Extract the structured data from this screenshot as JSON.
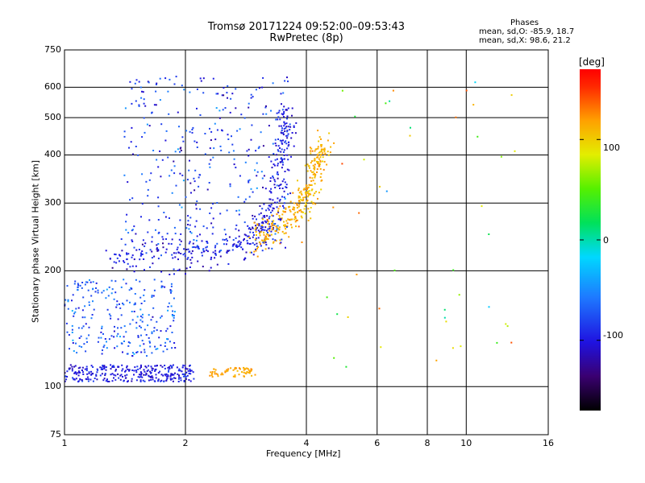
{
  "header": {
    "title_line1": "Tromsø 20171224 09:52:00–09:53:43",
    "title_line2": "RwPretec (8p)"
  },
  "phases_box": {
    "heading": "Phases",
    "line_o": "mean, sd,O: -85.9, 18.7",
    "line_x": "mean, sd,X:  98.6, 21.2"
  },
  "colorbar": {
    "unit": "[deg]",
    "ticks": [
      "100",
      "0",
      "-100"
    ]
  },
  "colors": {
    "colormap": [
      "#000000",
      "#3a0070",
      "#1f12e0",
      "#1e78ff",
      "#00d8ff",
      "#00e15a",
      "#55f000",
      "#e3ee00",
      "#ffa000",
      "#ff2800",
      "#ff0000"
    ]
  },
  "chart_data": {
    "type": "scatter",
    "title": "Tromsø 20171224 09:52:00–09:53:43",
    "subtitle": "RwPretec (8p)",
    "xlabel": "Frequency [MHz]",
    "ylabel": "Stationary phase Virtual Height [km]",
    "x_scale": "log",
    "y_scale": "log",
    "xlim": [
      1,
      16
    ],
    "ylim": [
      75,
      750
    ],
    "x_ticks": [
      "1",
      "2",
      "4",
      "6",
      "8",
      "10",
      "16"
    ],
    "y_ticks": [
      "750",
      "600",
      "500",
      "400",
      "300",
      "200",
      "100",
      "75"
    ],
    "grid": true,
    "color_scale": {
      "label": "[deg]",
      "range": [
        -170,
        170
      ],
      "ticks": [
        100,
        0,
        -100
      ]
    },
    "clusters": [
      {
        "name_hint": "E-layer O trace",
        "x": [
          1.0,
          2.1
        ],
        "y": [
          103,
          114
        ],
        "phase_mean": -100,
        "phase_sd": 15,
        "count": 300
      },
      {
        "name_hint": "E-layer X trace",
        "x": [
          2.3,
          3.0
        ],
        "y": [
          106,
          112
        ],
        "phase_mean": 100,
        "phase_sd": 10,
        "count": 60
      },
      {
        "name_hint": "Es / lower scatter",
        "x": [
          1.0,
          1.9
        ],
        "y": [
          120,
          190
        ],
        "phase_mean": -80,
        "phase_sd": 25,
        "count": 260
      },
      {
        "name_hint": "F-layer O trace",
        "points": [
          [
            1.3,
            215
          ],
          [
            1.6,
            225
          ],
          [
            2.0,
            222
          ],
          [
            2.4,
            225
          ],
          [
            2.8,
            235
          ],
          [
            3.1,
            250
          ],
          [
            3.3,
            285
          ],
          [
            3.45,
            360
          ],
          [
            3.55,
            450
          ],
          [
            3.6,
            520
          ]
        ],
        "phase_mean": -100,
        "phase_sd": 18,
        "count": 420
      },
      {
        "name_hint": "F-layer X trace",
        "points": [
          [
            3.0,
            240
          ],
          [
            3.4,
            260
          ],
          [
            3.8,
            285
          ],
          [
            4.05,
            320
          ],
          [
            4.25,
            380
          ],
          [
            4.4,
            430
          ]
        ],
        "phase_mean": 95,
        "phase_sd": 15,
        "count": 320
      },
      {
        "name_hint": "Upper scatter",
        "x": [
          1.4,
          3.6
        ],
        "y": [
          220,
          640
        ],
        "phase_mean": -85,
        "phase_sd": 30,
        "count": 360
      },
      {
        "name_hint": "Sparse high-frequency scatter",
        "x": [
          4.5,
          13.5
        ],
        "y": [
          100,
          650
        ],
        "phase_mean": 60,
        "phase_sd": 90,
        "count": 45
      }
    ]
  }
}
